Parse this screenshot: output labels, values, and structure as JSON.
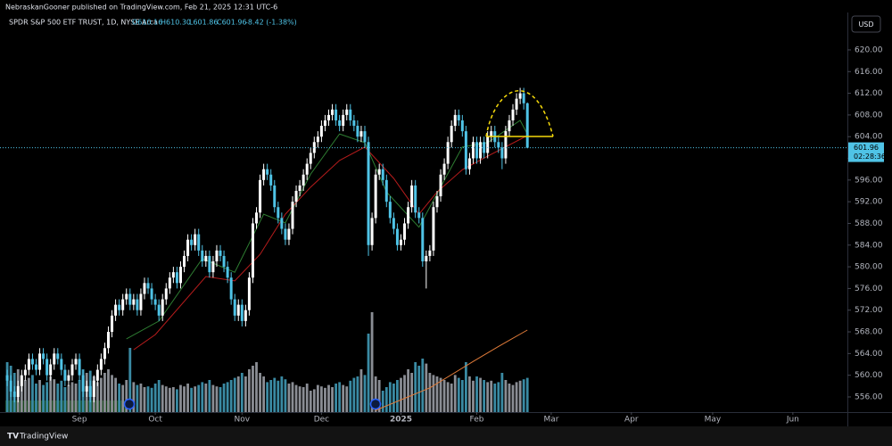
{
  "header": {
    "attribution": "NebraskanGooner published on TradingView.com, Feb 21, 2025 12:31 UTC-6"
  },
  "legend": {
    "symbol": "SPDR S&P 500 ETF TRUST, 1D, NYSE Arca",
    "open": "O610.16",
    "high": "H610.30",
    "low": "L601.86",
    "close": "C601.96",
    "change": "-8.42 (-1.38%)"
  },
  "currency": "USD",
  "countdown": "02:28:36",
  "footer": {
    "brand": "TradingView"
  },
  "chart_data": {
    "type": "candlestick",
    "up_color": "#ffffff",
    "down_color": "#4fc3e6",
    "volume_up_color": "#8a8d94",
    "volume_down_color": "#3a8aa3",
    "grid": false,
    "x": [
      0,
      1,
      2,
      3,
      4,
      5,
      6,
      7,
      8,
      9,
      10,
      11,
      12,
      13,
      14,
      15,
      16,
      17,
      18,
      19,
      20,
      21,
      22,
      23,
      24,
      25,
      26,
      27,
      28,
      29,
      30,
      31,
      32,
      33,
      34,
      35,
      36,
      37,
      38,
      39,
      40,
      41,
      42,
      43,
      44,
      45,
      46,
      47,
      48,
      49,
      50,
      51,
      52,
      53,
      54,
      55,
      56,
      57,
      58,
      59,
      60,
      61,
      62,
      63,
      64,
      65,
      66,
      67,
      68,
      69,
      70,
      71,
      72,
      73,
      74,
      75,
      76,
      77,
      78,
      79,
      80,
      81,
      82,
      83,
      84,
      85,
      86,
      87,
      88,
      89,
      90,
      91,
      92,
      93,
      94,
      95,
      96,
      97,
      98,
      99,
      100,
      101,
      102,
      103,
      104,
      105,
      106,
      107,
      108,
      109,
      110,
      111,
      112,
      113,
      114,
      115,
      116,
      117,
      118,
      119,
      120,
      121,
      122,
      123,
      124,
      125,
      126,
      127,
      128,
      129,
      130,
      131,
      132,
      133,
      134,
      135,
      136,
      137,
      138,
      139,
      140,
      141,
      142,
      143,
      144
    ],
    "ohlc": [
      [
        560,
        561,
        558,
        559
      ],
      [
        559,
        560,
        556,
        557
      ],
      [
        557,
        558,
        555,
        556
      ],
      [
        556,
        559,
        555,
        558
      ],
      [
        558,
        561,
        557,
        560
      ],
      [
        560,
        562,
        559,
        561
      ],
      [
        561,
        564,
        560,
        563
      ],
      [
        563,
        564,
        561,
        562
      ],
      [
        562,
        563,
        560,
        561
      ],
      [
        561,
        565,
        560,
        564
      ],
      [
        564,
        565,
        562,
        563
      ],
      [
        563,
        564,
        559,
        560
      ],
      [
        560,
        563,
        559,
        562
      ],
      [
        562,
        565,
        561,
        564
      ],
      [
        564,
        565,
        562,
        563
      ],
      [
        563,
        564,
        560,
        561
      ],
      [
        561,
        562,
        558,
        559
      ],
      [
        559,
        561,
        558,
        560
      ],
      [
        560,
        563,
        559,
        562
      ],
      [
        562,
        564,
        561,
        563
      ],
      [
        563,
        564,
        559,
        560
      ],
      [
        560,
        561,
        556,
        557
      ],
      [
        557,
        559,
        556,
        558
      ],
      [
        558,
        559,
        555,
        556
      ],
      [
        556,
        560,
        555,
        559
      ],
      [
        559,
        562,
        558,
        561
      ],
      [
        561,
        564,
        560,
        563
      ],
      [
        563,
        566,
        562,
        565
      ],
      [
        565,
        569,
        564,
        568
      ],
      [
        568,
        572,
        567,
        571
      ],
      [
        571,
        574,
        570,
        573
      ],
      [
        573,
        574,
        571,
        572
      ],
      [
        572,
        575,
        571,
        574
      ],
      [
        574,
        576,
        573,
        575
      ],
      [
        575,
        576,
        572,
        573
      ],
      [
        573,
        575,
        572,
        574
      ],
      [
        574,
        575,
        571,
        572
      ],
      [
        572,
        576,
        571,
        575
      ],
      [
        575,
        578,
        574,
        577
      ],
      [
        577,
        578,
        575,
        576
      ],
      [
        576,
        577,
        573,
        574
      ],
      [
        574,
        575,
        572,
        573
      ],
      [
        573,
        574,
        570,
        571
      ],
      [
        571,
        575,
        570,
        574
      ],
      [
        574,
        577,
        573,
        576
      ],
      [
        576,
        579,
        575,
        578
      ],
      [
        578,
        580,
        577,
        579
      ],
      [
        579,
        580,
        576,
        577
      ],
      [
        577,
        581,
        576,
        580
      ],
      [
        580,
        583,
        579,
        582
      ],
      [
        582,
        586,
        581,
        585
      ],
      [
        585,
        586,
        583,
        584
      ],
      [
        584,
        587,
        583,
        586
      ],
      [
        586,
        587,
        582,
        583
      ],
      [
        583,
        584,
        580,
        581
      ],
      [
        581,
        583,
        580,
        582
      ],
      [
        582,
        583,
        578,
        579
      ],
      [
        579,
        582,
        578,
        581
      ],
      [
        581,
        584,
        580,
        583
      ],
      [
        583,
        584,
        581,
        582
      ],
      [
        582,
        583,
        579,
        580
      ],
      [
        580,
        581,
        577,
        578
      ],
      [
        578,
        579,
        573,
        574
      ],
      [
        574,
        575,
        570,
        571
      ],
      [
        571,
        574,
        570,
        573
      ],
      [
        573,
        574,
        569,
        570
      ],
      [
        570,
        573,
        569,
        572
      ],
      [
        572,
        579,
        571,
        578
      ],
      [
        578,
        589,
        577,
        588
      ],
      [
        588,
        591,
        587,
        590
      ],
      [
        590,
        597,
        589,
        596
      ],
      [
        596,
        599,
        595,
        598
      ],
      [
        598,
        599,
        596,
        597
      ],
      [
        597,
        598,
        594,
        595
      ],
      [
        595,
        596,
        590,
        591
      ],
      [
        591,
        592,
        588,
        589
      ],
      [
        589,
        590,
        586,
        587
      ],
      [
        587,
        588,
        584,
        585
      ],
      [
        585,
        588,
        584,
        587
      ],
      [
        587,
        593,
        586,
        592
      ],
      [
        592,
        595,
        591,
        594
      ],
      [
        594,
        596,
        593,
        595
      ],
      [
        595,
        598,
        594,
        597
      ],
      [
        597,
        600,
        596,
        599
      ],
      [
        599,
        602,
        598,
        601
      ],
      [
        601,
        604,
        600,
        603
      ],
      [
        603,
        605,
        602,
        604
      ],
      [
        604,
        607,
        603,
        606
      ],
      [
        606,
        608,
        605,
        607
      ],
      [
        607,
        609,
        606,
        608
      ],
      [
        608,
        610,
        607,
        609
      ],
      [
        609,
        610,
        606,
        607
      ],
      [
        607,
        608,
        605,
        606
      ],
      [
        606,
        609,
        605,
        608
      ],
      [
        608,
        610,
        607,
        609
      ],
      [
        609,
        610,
        606,
        607
      ],
      [
        607,
        608,
        605,
        606
      ],
      [
        606,
        607,
        603,
        604
      ],
      [
        604,
        606,
        603,
        605
      ],
      [
        605,
        606,
        602,
        603
      ],
      [
        603,
        604,
        582,
        584
      ],
      [
        584,
        590,
        583,
        589
      ],
      [
        589,
        598,
        588,
        597
      ],
      [
        597,
        599,
        596,
        598
      ],
      [
        598,
        599,
        595,
        596
      ],
      [
        596,
        597,
        591,
        592
      ],
      [
        592,
        593,
        588,
        589
      ],
      [
        589,
        590,
        586,
        587
      ],
      [
        587,
        588,
        583,
        584
      ],
      [
        584,
        586,
        583,
        585
      ],
      [
        585,
        589,
        584,
        588
      ],
      [
        588,
        592,
        587,
        591
      ],
      [
        591,
        596,
        590,
        595
      ],
      [
        595,
        596,
        589,
        590
      ],
      [
        590,
        591,
        588,
        589
      ],
      [
        589,
        590,
        580,
        581
      ],
      [
        581,
        583,
        576,
        582
      ],
      [
        582,
        584,
        581,
        583
      ],
      [
        583,
        592,
        582,
        591
      ],
      [
        591,
        594,
        590,
        593
      ],
      [
        593,
        598,
        592,
        597
      ],
      [
        597,
        600,
        596,
        599
      ],
      [
        599,
        604,
        598,
        603
      ],
      [
        603,
        607,
        602,
        606
      ],
      [
        606,
        609,
        605,
        608
      ],
      [
        608,
        609,
        606,
        607
      ],
      [
        607,
        608,
        604,
        605
      ],
      [
        605,
        606,
        597,
        598
      ],
      [
        598,
        601,
        597,
        600
      ],
      [
        600,
        604,
        599,
        603
      ],
      [
        603,
        604,
        599,
        600
      ],
      [
        600,
        604,
        599,
        603
      ],
      [
        603,
        604,
        600,
        601
      ],
      [
        601,
        605,
        600,
        604
      ],
      [
        604,
        606,
        603,
        605
      ],
      [
        605,
        606,
        602,
        603
      ],
      [
        603,
        604,
        601,
        602
      ],
      [
        602,
        603,
        598,
        600
      ],
      [
        600,
        606,
        599,
        605
      ],
      [
        605,
        608,
        604,
        607
      ],
      [
        607,
        610,
        606,
        609
      ],
      [
        609,
        612,
        608,
        611
      ],
      [
        611,
        613,
        610,
        612
      ],
      [
        612,
        613,
        609,
        610.16
      ],
      [
        610.16,
        610.3,
        601.86,
        601.96
      ]
    ],
    "volume": [
      70,
      65,
      55,
      60,
      50,
      45,
      48,
      52,
      40,
      45,
      38,
      42,
      50,
      46,
      40,
      44,
      35,
      38,
      42,
      40,
      45,
      60,
      55,
      58,
      50,
      42,
      48,
      55,
      60,
      52,
      48,
      40,
      38,
      45,
      90,
      42,
      38,
      40,
      35,
      36,
      34,
      40,
      45,
      38,
      36,
      34,
      35,
      32,
      38,
      36,
      40,
      34,
      36,
      38,
      42,
      40,
      45,
      38,
      36,
      35,
      40,
      42,
      45,
      48,
      50,
      55,
      50,
      60,
      65,
      70,
      55,
      50,
      42,
      45,
      48,
      44,
      50,
      46,
      40,
      42,
      38,
      36,
      35,
      40,
      30,
      32,
      38,
      36,
      34,
      38,
      35,
      40,
      42,
      38,
      36,
      44,
      48,
      50,
      60,
      52,
      110,
      140,
      50,
      45,
      30,
      35,
      42,
      40,
      45,
      48,
      52,
      60,
      55,
      70,
      65,
      75,
      68,
      55,
      52,
      50,
      48,
      45,
      42,
      40,
      52,
      48,
      45,
      70,
      50,
      44,
      50,
      48,
      45,
      42,
      44,
      40,
      42,
      55,
      45,
      40,
      38,
      42,
      44,
      46,
      48
    ],
    "volume_lim": [
      0,
      140
    ],
    "overlays": [
      {
        "color": "#2e7d32",
        "x": [
          33,
          42,
          54,
          63,
          71,
          77,
          84,
          92,
          99,
          105,
          114,
          120,
          126,
          133,
          142,
          144
        ],
        "values": [
          566.7,
          570.0,
          581.5,
          579.0,
          589.7,
          588.1,
          597.1,
          604.5,
          602.9,
          593.8,
          587.3,
          594.7,
          602.1,
          602.9,
          607.0,
          604.5
        ]
      },
      {
        "color": "#b71c1c",
        "x": [
          35,
          41,
          55,
          63,
          70,
          77,
          84,
          92,
          99,
          107,
          114,
          119,
          126,
          133,
          144
        ],
        "values": [
          564.7,
          567.5,
          578.2,
          577.4,
          582.3,
          589.7,
          594.7,
          599.6,
          602.1,
          596.3,
          589.7,
          593.8,
          597.9,
          600.4,
          604.2
        ]
      }
    ],
    "volume_overlay": {
      "color": "#e07b39",
      "x": [
        102,
        117,
        129,
        136,
        144
      ],
      "values": [
        2.5,
        34,
        71,
        92,
        115
      ]
    },
    "xlim": [
      -2,
      232.6
    ],
    "ylim": [
      553.2,
      626.9
    ],
    "xticks": [
      {
        "value": 20,
        "label": "Sep"
      },
      {
        "value": 41,
        "label": "Oct"
      },
      {
        "value": 65,
        "label": "Nov"
      },
      {
        "value": 87,
        "label": "Dec"
      },
      {
        "value": 109,
        "label": "2025"
      },
      {
        "value": 130,
        "label": "Feb"
      },
      {
        "value": 150.6,
        "label": "Mar"
      },
      {
        "value": 172.8,
        "label": "Apr"
      },
      {
        "value": 195.3,
        "label": "May"
      },
      {
        "value": 217.5,
        "label": "Jun"
      }
    ],
    "yticks": [
      {
        "value": 556,
        "label": "556.00"
      },
      {
        "value": 560,
        "label": "560.00"
      },
      {
        "value": 564,
        "label": "564.00"
      },
      {
        "value": 568,
        "label": "568.00"
      },
      {
        "value": 572,
        "label": "572.00"
      },
      {
        "value": 576,
        "label": "576.00"
      },
      {
        "value": 580,
        "label": "580.00"
      },
      {
        "value": 584,
        "label": "584.00"
      },
      {
        "value": 588,
        "label": "588.00"
      },
      {
        "value": 592,
        "label": "592.00"
      },
      {
        "value": 596,
        "label": "596.00"
      },
      {
        "value": 600,
        "label": "600.00"
      },
      {
        "value": 604,
        "label": "604.00"
      },
      {
        "value": 608,
        "label": "608.00"
      },
      {
        "value": 612,
        "label": "612.00"
      },
      {
        "value": 616,
        "label": "616.00"
      },
      {
        "value": 620,
        "label": "620.00"
      }
    ]
  }
}
